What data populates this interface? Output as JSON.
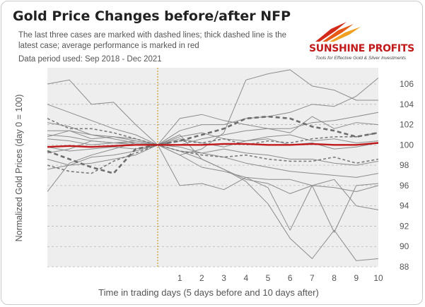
{
  "title": "Gold Price Changes before/after NFP",
  "subtitle": "The last three cases are marked with dashed lines; thick dashed line is the latest case; average performance is marked in red",
  "period": "Data period used: Sep 2018 - Dec 2021",
  "logo": {
    "name": "SUNSHINE PROFITS",
    "tagline": "Tools for Effective Gold & Silver Investments"
  },
  "colors": {
    "cases": "#8c8c8c",
    "average": "#c0191b",
    "event_marker": "#c8a020",
    "plot_bg": "#eeeeee"
  },
  "chart_data": {
    "type": "line",
    "xlabel": "Time in trading days  (5 days before and 10 days after)",
    "ylabel": "Normalized Gold Prices (day 0 = 100)",
    "x": [
      -5,
      -4,
      -3,
      -2,
      -1,
      0,
      1,
      2,
      3,
      4,
      5,
      6,
      7,
      8,
      9,
      10
    ],
    "xticks": [
      1,
      2,
      3,
      4,
      5,
      6,
      7,
      8,
      9,
      10
    ],
    "ylim": [
      88,
      106
    ],
    "yticks": [
      88,
      90,
      92,
      94,
      96,
      98,
      100,
      102,
      104,
      106
    ],
    "event_day": 0,
    "grid": "horizontal dashed",
    "series": [
      {
        "style": "solid",
        "values": [
          106.0,
          106.4,
          104.0,
          104.2,
          102.0,
          100.0,
          99.0,
          99.6,
          101.2,
          106.4,
          107.0,
          107.4,
          105.8,
          105.4,
          104.4,
          104.4
        ]
      },
      {
        "style": "solid",
        "values": [
          104.0,
          103.2,
          102.4,
          101.6,
          101.0,
          100.0,
          99.4,
          98.6,
          97.6,
          96.4,
          94.2,
          90.8,
          88.8,
          91.6,
          88.6,
          88.8
        ]
      },
      {
        "style": "solid",
        "values": [
          102.2,
          101.8,
          101.0,
          100.6,
          100.2,
          100.0,
          96.0,
          96.2,
          95.6,
          96.8,
          95.8,
          91.6,
          96.0,
          91.4,
          96.0,
          96.2
        ]
      },
      {
        "style": "solid",
        "values": [
          95.4,
          98.2,
          99.0,
          99.6,
          100.2,
          100.0,
          101.0,
          98.6,
          97.6,
          96.6,
          96.2,
          95.2,
          96.0,
          96.6,
          94.0,
          93.6
        ]
      },
      {
        "style": "solid",
        "values": [
          101.4,
          101.4,
          101.0,
          100.8,
          100.6,
          100.0,
          101.4,
          102.0,
          102.0,
          102.6,
          102.8,
          103.2,
          104.0,
          103.8,
          104.8,
          106.6
        ]
      },
      {
        "style": "solid",
        "values": [
          98.6,
          98.0,
          98.2,
          98.6,
          99.0,
          100.0,
          102.6,
          103.0,
          102.4,
          102.0,
          101.6,
          101.2,
          102.8,
          101.6,
          102.2,
          102.0
        ]
      },
      {
        "style": "solid",
        "values": [
          97.6,
          98.0,
          98.8,
          99.0,
          99.4,
          100.0,
          99.0,
          97.8,
          97.4,
          96.8,
          96.6,
          96.6,
          96.0,
          95.8,
          95.4,
          96.0
        ]
      },
      {
        "style": "solid",
        "values": [
          100.6,
          100.4,
          100.0,
          100.2,
          100.2,
          100.0,
          100.0,
          100.6,
          101.0,
          101.4,
          101.6,
          101.6,
          102.2,
          102.4,
          102.8,
          103.2
        ]
      },
      {
        "style": "solid",
        "values": [
          100.8,
          101.4,
          100.6,
          100.8,
          100.4,
          100.0,
          99.8,
          99.2,
          98.8,
          98.2,
          97.8,
          97.4,
          97.2,
          97.0,
          96.8,
          97.2
        ]
      },
      {
        "style": "solid",
        "values": [
          99.2,
          99.6,
          100.4,
          100.2,
          100.0,
          100.0,
          100.8,
          101.2,
          100.6,
          100.4,
          100.8,
          101.0,
          100.4,
          100.6,
          100.2,
          100.4
        ]
      },
      {
        "style": "solid",
        "values": [
          99.8,
          99.4,
          99.6,
          99.8,
          99.6,
          100.0,
          99.4,
          99.2,
          99.6,
          99.2,
          99.0,
          98.6,
          98.6,
          98.2,
          98.0,
          98.4
        ]
      },
      {
        "style": "solid",
        "values": [
          101.0,
          100.8,
          100.4,
          100.2,
          100.4,
          100.0,
          100.6,
          100.2,
          99.8,
          100.4,
          100.6,
          100.0,
          100.2,
          99.6,
          99.8,
          100.2
        ]
      },
      {
        "style": "dashed",
        "values": [
          102.6,
          101.6,
          101.6,
          101.2,
          100.6,
          100.0,
          99.4,
          99.0,
          98.8,
          99.0,
          98.6,
          98.4,
          98.4,
          98.8,
          98.2,
          98.6
        ]
      },
      {
        "style": "dashed",
        "values": [
          98.0,
          97.4,
          97.2,
          98.4,
          99.2,
          100.0,
          100.4,
          100.2,
          100.6,
          100.0,
          100.4,
          100.2,
          100.6,
          100.8,
          100.8,
          101.2
        ]
      },
      {
        "style": "thick-dashed",
        "values": [
          99.4,
          98.6,
          97.8,
          97.2,
          99.6,
          100.0,
          100.4,
          101.0,
          101.6,
          102.6,
          102.8,
          102.6,
          101.8,
          101.4,
          100.8,
          101.2
        ]
      },
      {
        "style": "average",
        "values": [
          99.8,
          99.9,
          99.8,
          99.9,
          100.0,
          100.0,
          100.0,
          100.0,
          100.1,
          100.1,
          100.0,
          100.0,
          100.1,
          100.0,
          100.0,
          100.2
        ]
      }
    ]
  }
}
